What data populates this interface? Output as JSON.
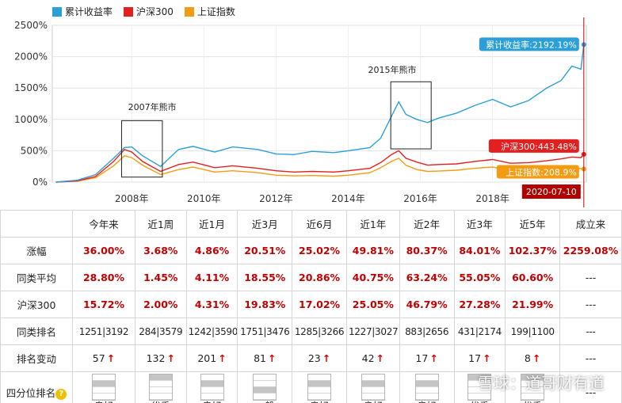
{
  "chart_data": {
    "type": "line",
    "legend": [
      "累计收益率",
      "沪深300",
      "上证指数"
    ],
    "colors": [
      "#2b9fd6",
      "#e32020",
      "#f39c12"
    ],
    "x_ticks": [
      "2008年",
      "2010年",
      "2012年",
      "2014年",
      "2016年",
      "2018年"
    ],
    "y_ticks": [
      "2500%",
      "2000%",
      "1500%",
      "1000%",
      "500%",
      "0%"
    ],
    "ylim": [
      0,
      2500
    ],
    "xlim": [
      2005.8,
      2020.6
    ],
    "series": [
      {
        "name": "累计收益率",
        "x": [
          2005.9,
          2006.5,
          2007.0,
          2007.5,
          2007.8,
          2008.0,
          2008.3,
          2008.8,
          2009.3,
          2009.7,
          2010.3,
          2010.8,
          2011.5,
          2012.0,
          2012.5,
          2013.0,
          2013.6,
          2014.0,
          2014.6,
          2014.9,
          2015.2,
          2015.4,
          2015.6,
          2015.9,
          2016.2,
          2016.5,
          2017.0,
          2017.5,
          2018.0,
          2018.5,
          2019.0,
          2019.5,
          2019.9,
          2020.2,
          2020.45,
          2020.53
        ],
        "values": [
          0,
          30,
          120,
          380,
          550,
          560,
          420,
          250,
          520,
          570,
          480,
          560,
          520,
          450,
          440,
          490,
          470,
          500,
          550,
          700,
          1050,
          1280,
          1080,
          1000,
          950,
          1020,
          1100,
          1220,
          1320,
          1200,
          1300,
          1500,
          1620,
          1850,
          1800,
          2192
        ]
      },
      {
        "name": "沪深300",
        "x": [
          2005.9,
          2006.5,
          2007.0,
          2007.5,
          2007.8,
          2008.0,
          2008.3,
          2008.8,
          2009.3,
          2009.7,
          2010.3,
          2010.8,
          2011.5,
          2012.0,
          2012.5,
          2013.0,
          2013.6,
          2014.0,
          2014.6,
          2014.9,
          2015.2,
          2015.4,
          2015.6,
          2015.9,
          2016.2,
          2016.5,
          2017.0,
          2017.5,
          2018.0,
          2018.5,
          2019.0,
          2019.5,
          2019.9,
          2020.2,
          2020.45,
          2020.53
        ],
        "values": [
          0,
          20,
          90,
          330,
          520,
          480,
          330,
          170,
          280,
          320,
          230,
          260,
          220,
          180,
          160,
          170,
          160,
          180,
          220,
          310,
          440,
          500,
          380,
          320,
          270,
          280,
          290,
          330,
          360,
          300,
          310,
          340,
          370,
          400,
          390,
          443
        ]
      },
      {
        "name": "上证指数",
        "x": [
          2005.9,
          2006.5,
          2007.0,
          2007.5,
          2007.8,
          2008.0,
          2008.3,
          2008.8,
          2009.3,
          2009.7,
          2010.3,
          2010.8,
          2011.5,
          2012.0,
          2012.5,
          2013.0,
          2013.6,
          2014.0,
          2014.6,
          2014.9,
          2015.2,
          2015.4,
          2015.6,
          2015.9,
          2016.2,
          2016.5,
          2017.0,
          2017.5,
          2018.0,
          2018.5,
          2019.0,
          2019.5,
          2019.9,
          2020.2,
          2020.45,
          2020.53
        ],
        "values": [
          0,
          15,
          70,
          260,
          420,
          390,
          270,
          120,
          200,
          240,
          160,
          180,
          150,
          110,
          100,
          105,
          95,
          110,
          150,
          230,
          330,
          380,
          270,
          200,
          170,
          175,
          190,
          220,
          240,
          180,
          190,
          200,
          215,
          225,
          215,
          208
        ]
      }
    ],
    "annotations": [
      "2007年熊市",
      "2015年熊市"
    ],
    "end_labels": [
      "累计收益率:2192.19%",
      "沪深300:443.48%",
      "上证指数:208.9%"
    ],
    "date_label": "2020-07-10"
  },
  "table": {
    "headers": [
      "",
      "今年来",
      "近1周",
      "近1月",
      "近3月",
      "近6月",
      "近1年",
      "近2年",
      "近3年",
      "近5年",
      "成立来"
    ],
    "rows": [
      {
        "label": "涨幅",
        "cells": [
          "36.00%",
          "3.68%",
          "4.86%",
          "20.51%",
          "25.02%",
          "49.81%",
          "80.37%",
          "84.01%",
          "102.37%",
          "2259.08%"
        ]
      },
      {
        "label": "同类平均",
        "cells": [
          "28.80%",
          "1.45%",
          "4.11%",
          "18.55%",
          "20.86%",
          "40.75%",
          "63.24%",
          "55.05%",
          "60.60%",
          "---"
        ]
      },
      {
        "label": "沪深300",
        "cells": [
          "15.72%",
          "2.00%",
          "4.31%",
          "19.83%",
          "17.02%",
          "25.05%",
          "46.79%",
          "27.28%",
          "21.99%",
          "---"
        ]
      },
      {
        "label": "同类排名",
        "cells": [
          "1251|3192",
          "284|3579",
          "1242|3590",
          "1751|3476",
          "1285|3266",
          "1227|3027",
          "883|2656",
          "431|2174",
          "199|1100",
          "---"
        ]
      },
      {
        "label": "排名变动",
        "cells": [
          "57",
          "132",
          "201",
          "81",
          "23",
          "42",
          "17",
          "17",
          "8",
          "---"
        ]
      }
    ],
    "quartile_label": "四分位排名",
    "quartiles": [
      {
        "level": 2,
        "text": "良好"
      },
      {
        "level": 1,
        "text": "优秀"
      },
      {
        "level": 2,
        "text": "良好"
      },
      {
        "level": 3,
        "text": "一般"
      },
      {
        "level": 2,
        "text": "良好"
      },
      {
        "level": 2,
        "text": "良好"
      },
      {
        "level": 2,
        "text": "良好"
      },
      {
        "level": 1,
        "text": "优秀"
      },
      {
        "level": 1,
        "text": "优秀"
      }
    ],
    "quartile_last": "---",
    "arrow_glyph": "↑",
    "help_glyph": "?"
  },
  "watermark": "雪球：道哥财有道"
}
